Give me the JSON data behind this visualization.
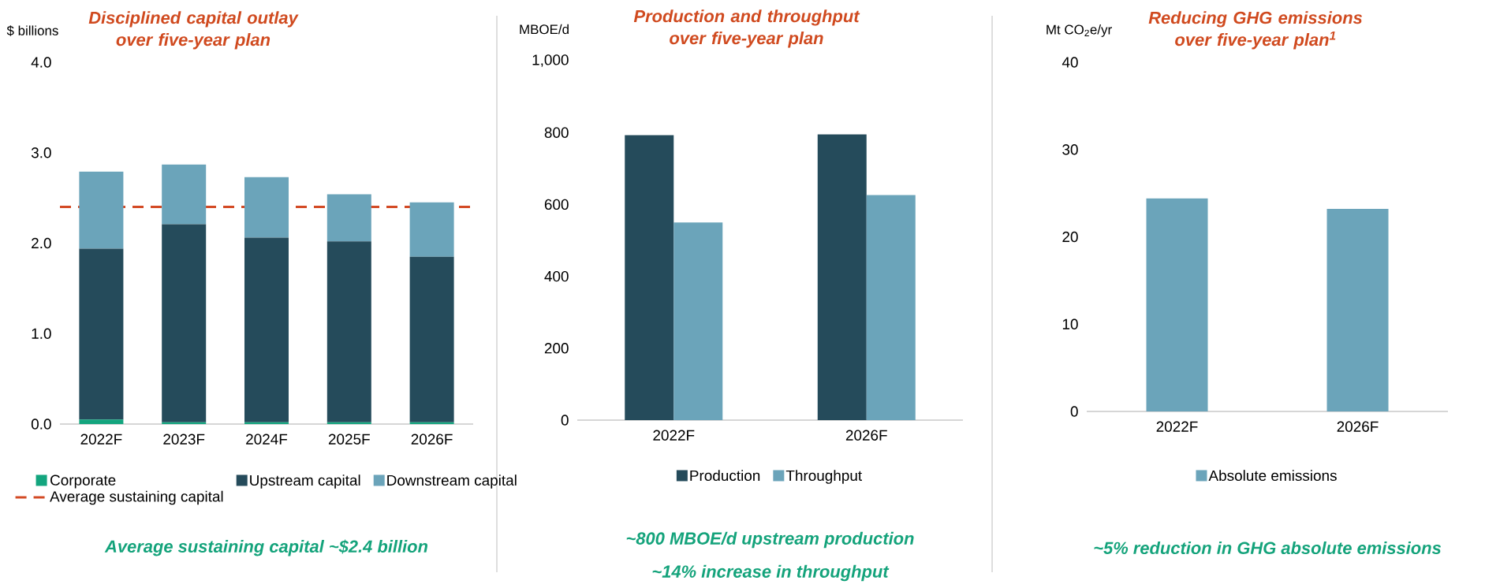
{
  "chart_data": [
    {
      "type": "bar",
      "stacked": true,
      "title": "Disciplined capital outlay over five-year plan",
      "ylabel": "$ billions",
      "categories": [
        "2022F",
        "2023F",
        "2024F",
        "2025F",
        "2026F"
      ],
      "series": [
        {
          "name": "Corporate",
          "color": "#13a57e",
          "values": [
            0.05,
            0.02,
            0.02,
            0.02,
            0.02
          ]
        },
        {
          "name": "Upstream capital",
          "color": "#254b5b",
          "values": [
            1.89,
            2.19,
            2.04,
            2.0,
            1.83
          ]
        },
        {
          "name": "Downstream capital",
          "color": "#6ba4ba",
          "values": [
            0.85,
            0.66,
            0.67,
            0.52,
            0.6
          ]
        }
      ],
      "ylim": [
        0,
        4
      ],
      "yticks": [
        {
          "value": 0,
          "label": "0.0"
        },
        {
          "value": 1,
          "label": "1.0"
        },
        {
          "value": 2,
          "label": "2.0"
        },
        {
          "value": 3,
          "label": "3.0"
        },
        {
          "value": 4,
          "label": "4.0"
        }
      ],
      "ref_lines": [
        {
          "axis": "y",
          "value": 2.4,
          "label": "Average sustaining capital",
          "color": "#d34a24",
          "line_style": "dashed"
        }
      ],
      "legend": "bottom",
      "annotations": [
        "Average sustaining capital ~$2.4 billion"
      ]
    },
    {
      "type": "bar",
      "title": "Production and throughput over five-year plan",
      "ylabel": "MBOE/d",
      "categories": [
        "2022F",
        "2026F"
      ],
      "series": [
        {
          "name": "Production",
          "color": "#254b5b",
          "values": [
            793,
            795
          ]
        },
        {
          "name": "Throughput",
          "color": "#6ba4ba",
          "values": [
            550,
            626
          ]
        }
      ],
      "ylim": [
        0,
        1000
      ],
      "yticks": [
        0,
        200,
        400,
        600,
        800,
        {
          "value": 1000,
          "label": "1,000"
        }
      ],
      "legend": "bottom",
      "annotations": [
        "~800 MBOE/d upstream production",
        "~14% increase in throughput"
      ]
    },
    {
      "type": "bar",
      "title": "Reducing GHG emissions over five-year plan$^{1}$",
      "ylabel": "Mt CO$_{2}$e/yr",
      "categories": [
        "2022F",
        "2026F"
      ],
      "series": [
        {
          "name": "Absolute emissions",
          "color": "#6ba4ba",
          "values": [
            24.4,
            23.2
          ]
        }
      ],
      "ylim": [
        0,
        40
      ],
      "yticks": [
        0,
        10,
        20,
        30,
        40
      ],
      "legend": "bottom",
      "annotations": [
        "~5% reduction in GHG absolute emissions"
      ]
    }
  ]
}
